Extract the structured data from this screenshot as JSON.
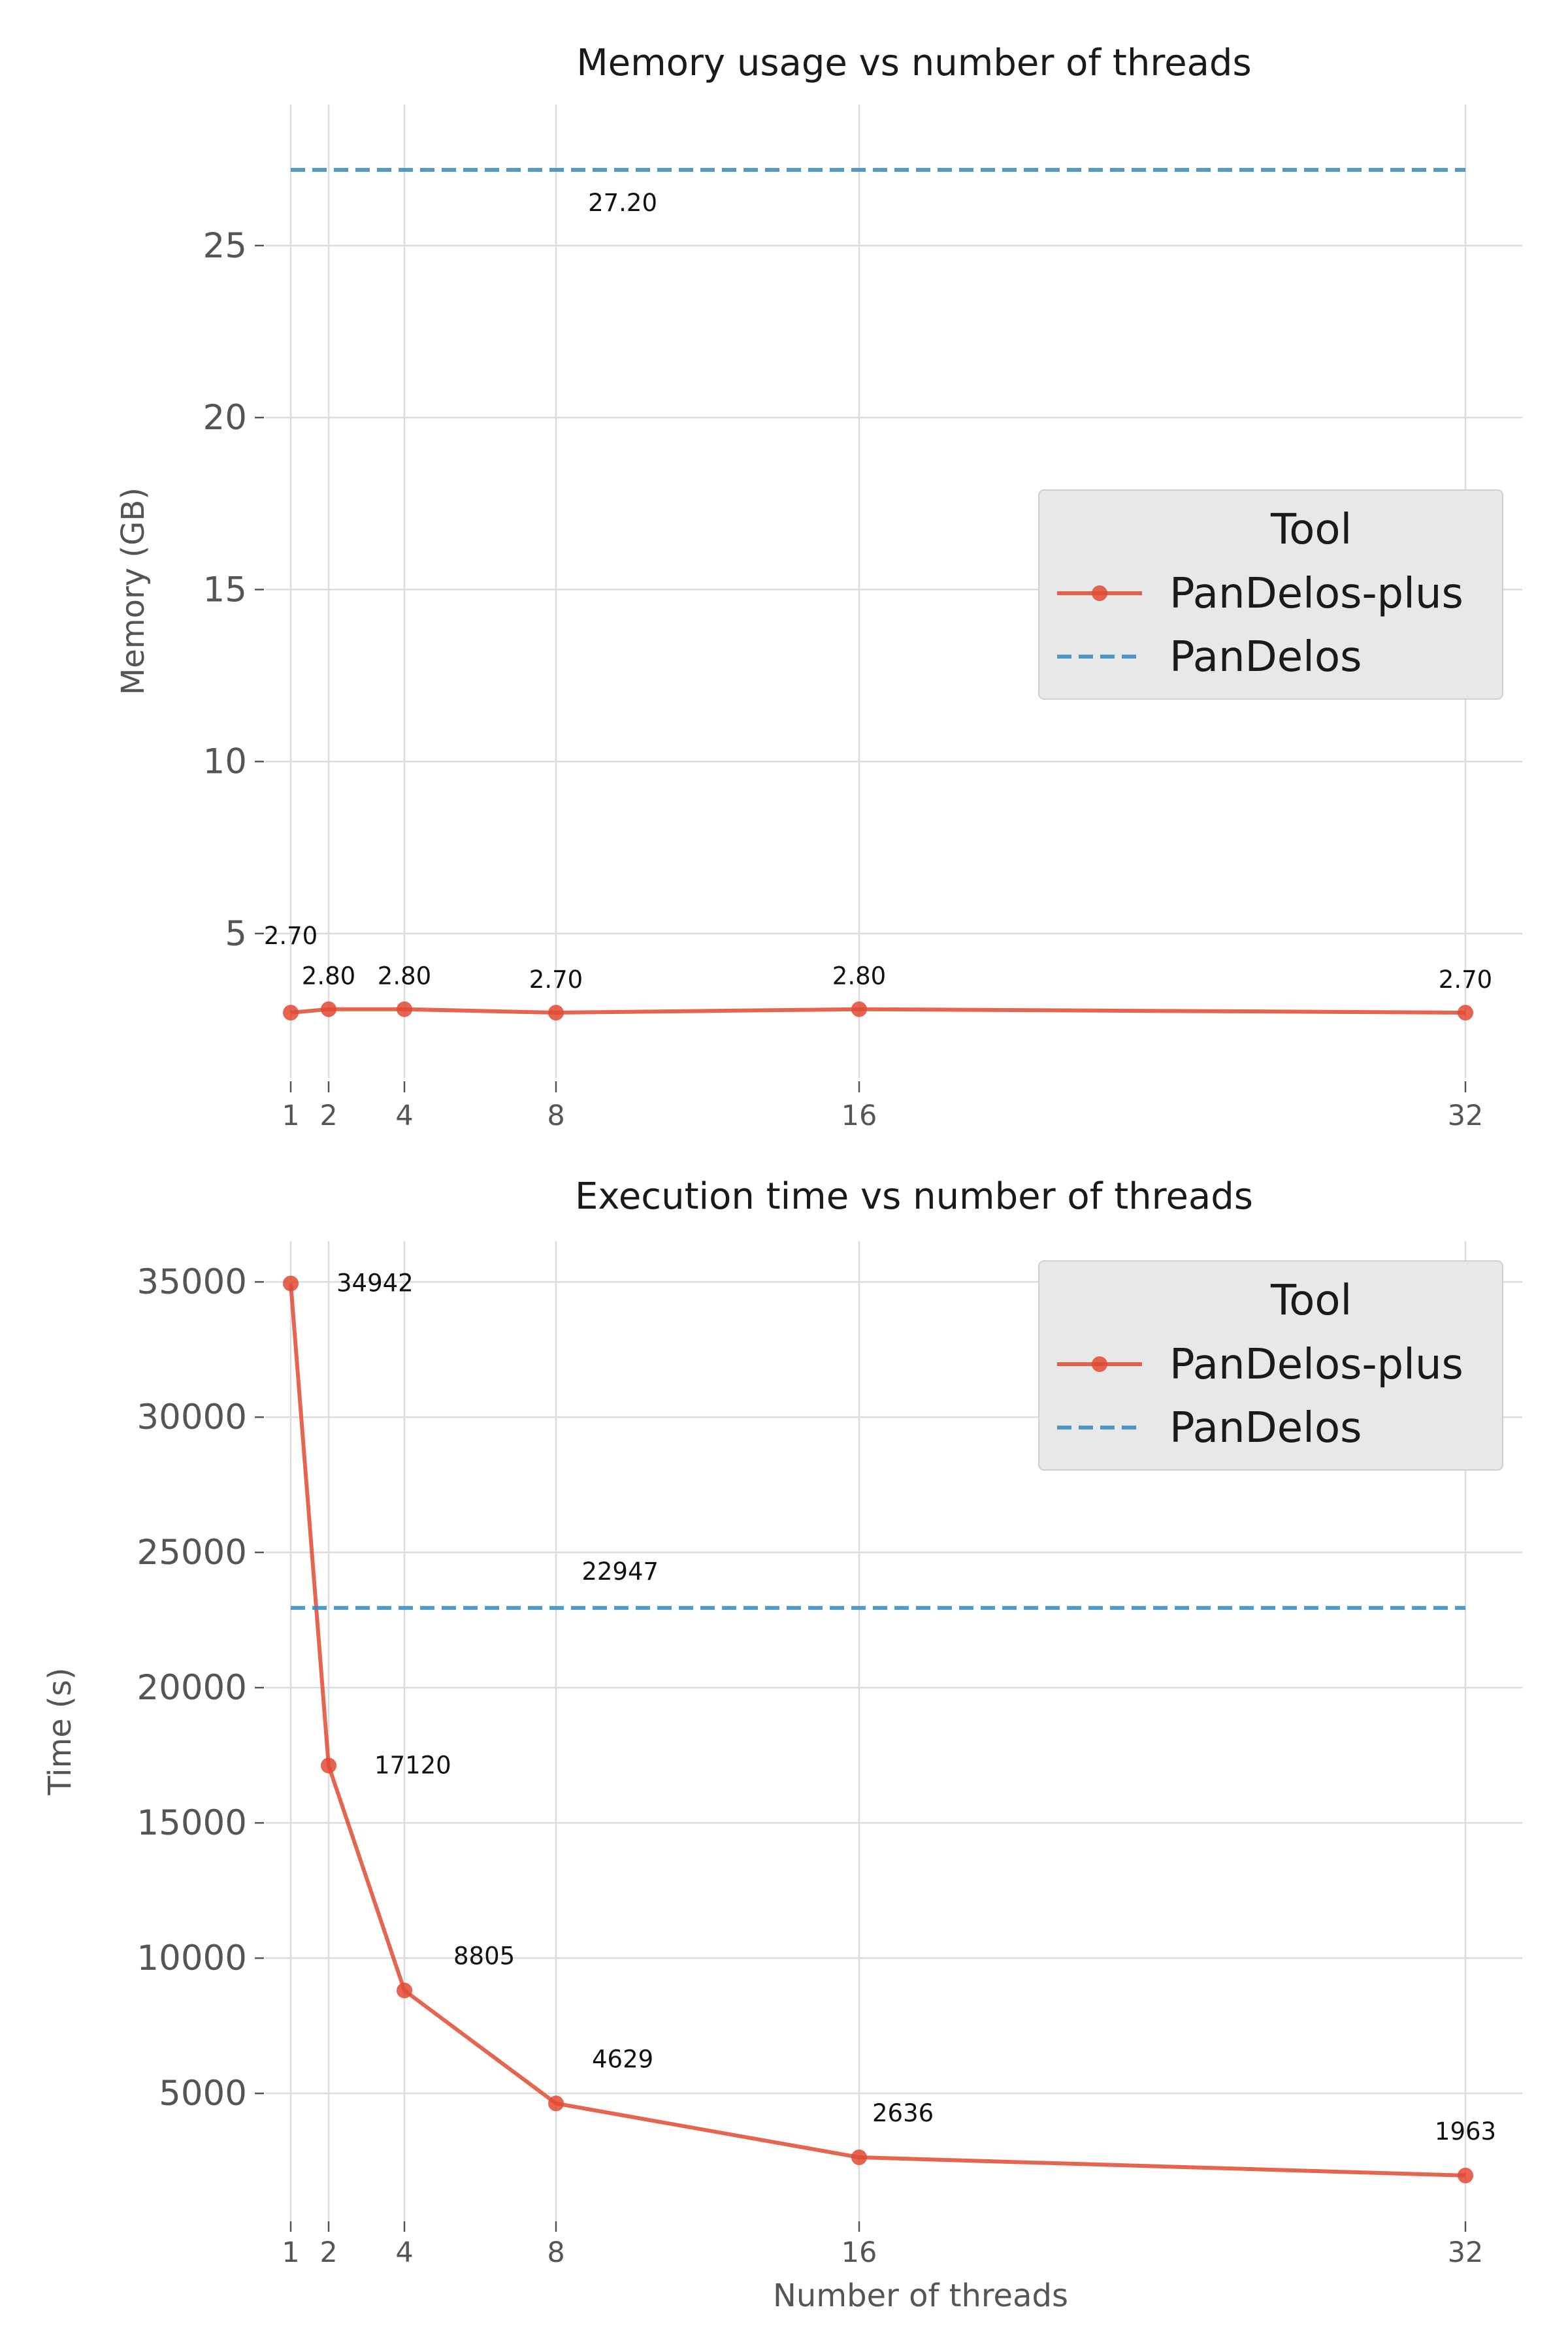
{
  "colors": {
    "pandelos_plus": "#e24a33",
    "pandelos": "#348abd"
  },
  "chart_data": [
    {
      "type": "line",
      "title": "Memory usage vs number of threads",
      "xlabel": "",
      "ylabel": "Memory (GB)",
      "x": [
        1,
        2,
        4,
        8,
        16,
        32
      ],
      "x_tick_labels": [
        "1",
        "2",
        "4",
        "8",
        "16",
        "32"
      ],
      "y_ticks": [
        5,
        10,
        15,
        20,
        25
      ],
      "y_tick_labels": [
        "5",
        "10",
        "15",
        "20",
        "25"
      ],
      "ylim": [
        0.8,
        29.1
      ],
      "grid": true,
      "series": [
        {
          "name": "PanDelos-plus",
          "style": "solid-with-markers",
          "values": [
            2.7,
            2.8,
            2.8,
            2.7,
            2.8,
            2.7
          ],
          "labels": [
            "2.70",
            "2.80",
            "2.80",
            "2.70",
            "2.80",
            "2.70"
          ]
        },
        {
          "name": "PanDelos",
          "style": "dashed",
          "constant": 27.2,
          "label": "27.20"
        }
      ],
      "legend": {
        "title": "Tool",
        "position": "center-right",
        "entries": [
          "PanDelos-plus",
          "PanDelos"
        ]
      }
    },
    {
      "type": "line",
      "title": "Execution time vs number of threads",
      "xlabel": "Number of threads",
      "ylabel": "Time (s)",
      "x": [
        1,
        2,
        4,
        8,
        16,
        32
      ],
      "x_tick_labels": [
        "1",
        "2",
        "4",
        "8",
        "16",
        "32"
      ],
      "y_ticks": [
        5000,
        10000,
        15000,
        20000,
        25000,
        30000,
        35000
      ],
      "y_tick_labels": [
        "5000",
        "10000",
        "15000",
        "20000",
        "25000",
        "30000",
        "35000"
      ],
      "ylim": [
        270,
        36500
      ],
      "grid": true,
      "series": [
        {
          "name": "PanDelos-plus",
          "style": "solid-with-markers",
          "values": [
            34942,
            17120,
            8805,
            4629,
            2636,
            1963
          ],
          "labels": [
            "34942",
            "17120",
            "8805",
            "4629",
            "2636",
            "1963"
          ]
        },
        {
          "name": "PanDelos",
          "style": "dashed",
          "constant": 22947,
          "label": "22947"
        }
      ],
      "legend": {
        "title": "Tool",
        "position": "top-right",
        "entries": [
          "PanDelos-plus",
          "PanDelos"
        ]
      }
    }
  ]
}
